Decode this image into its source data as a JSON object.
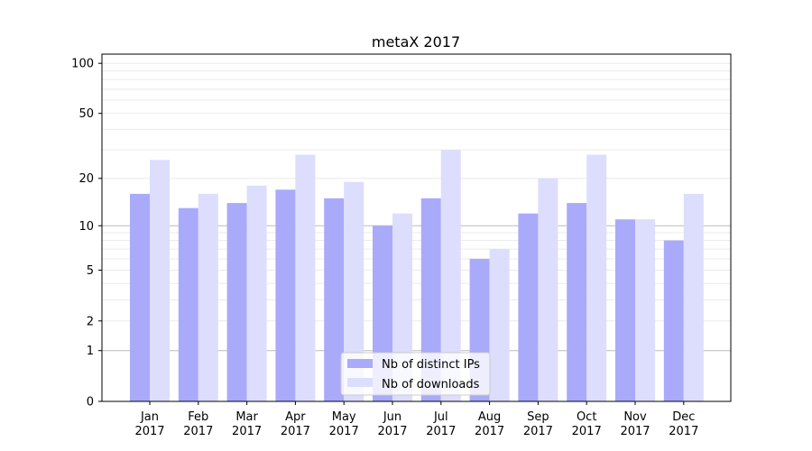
{
  "chart_data": {
    "type": "bar",
    "title": "metaX 2017",
    "xlabel": "",
    "ylabel": "",
    "yscale": "log(1+y)",
    "ylim": [
      0,
      110
    ],
    "yticks": [
      0,
      1,
      2,
      5,
      10,
      20,
      50,
      100
    ],
    "categories": [
      "Jan\n2017",
      "Feb\n2017",
      "Mar\n2017",
      "Apr\n2017",
      "May\n2017",
      "Jun\n2017",
      "Jul\n2017",
      "Aug\n2017",
      "Sep\n2017",
      "Oct\n2017",
      "Nov\n2017",
      "Dec\n2017"
    ],
    "series": [
      {
        "name": "Nb of distinct IPs",
        "color": "#aaaafa",
        "values": [
          16,
          13,
          14,
          17,
          15,
          10,
          15,
          6,
          12,
          14,
          11,
          8
        ]
      },
      {
        "name": "Nb of downloads",
        "color": "#ddddfd",
        "values": [
          26,
          16,
          18,
          28,
          19,
          12,
          30,
          7,
          20,
          28,
          11,
          16
        ]
      }
    ],
    "legend": "bottom-center",
    "grid": true
  }
}
